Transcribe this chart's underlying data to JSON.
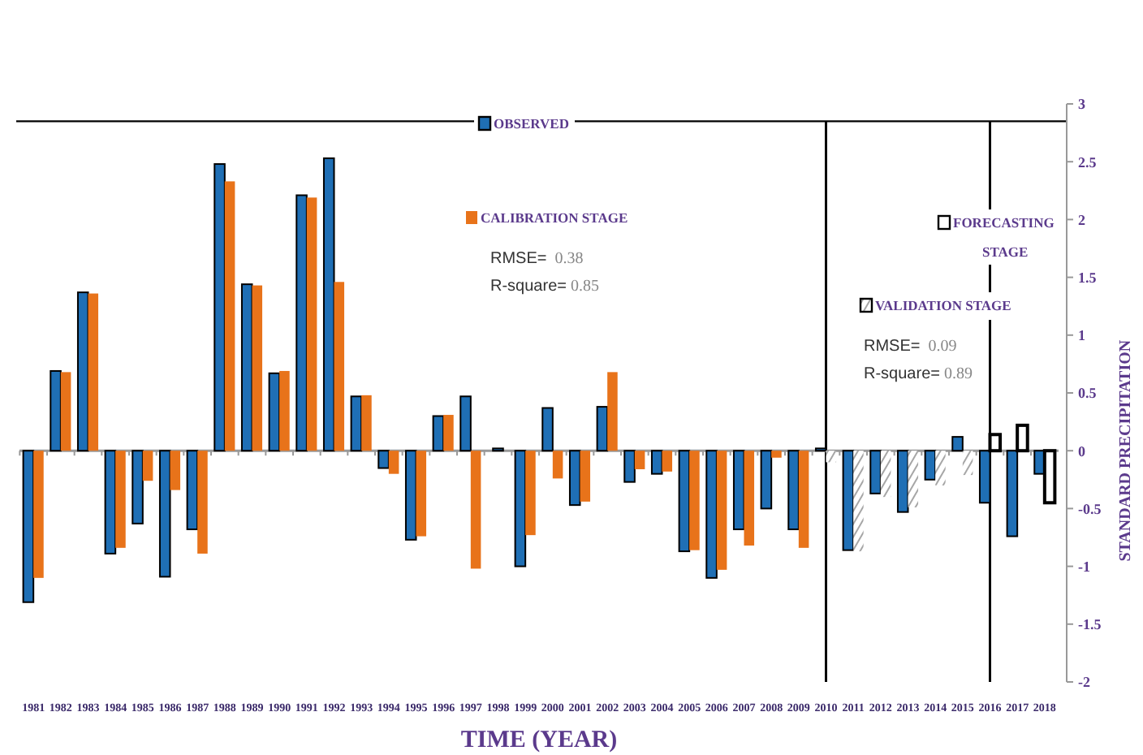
{
  "chart_data": {
    "type": "bar",
    "xlabel": "TIME (YEAR)",
    "ylabel": "STANDARD PRECIPITATION",
    "categories": [
      "1981",
      "1982",
      "1983",
      "1984",
      "1985",
      "1986",
      "1987",
      "1988",
      "1989",
      "1990",
      "1991",
      "1992",
      "1993",
      "1994",
      "1995",
      "1996",
      "1997",
      "1998",
      "1999",
      "2000",
      "2001",
      "2002",
      "2003",
      "2004",
      "2005",
      "2006",
      "2007",
      "2008",
      "2009",
      "2010",
      "2011",
      "2012",
      "2013",
      "2014",
      "2015",
      "2016",
      "2017",
      "2018"
    ],
    "series": [
      {
        "name": "OBSERVED",
        "color": "#1f6fb5",
        "values": [
          -1.31,
          0.69,
          1.37,
          -0.89,
          -0.63,
          -1.09,
          -0.68,
          2.48,
          1.44,
          0.67,
          2.21,
          2.53,
          0.47,
          -0.15,
          -0.77,
          0.3,
          0.47,
          0.02,
          -1.0,
          0.37,
          -0.47,
          0.38,
          -0.27,
          -0.2,
          -0.87,
          -1.1,
          -0.68,
          -0.5,
          -0.68,
          0.02,
          -0.86,
          -0.37,
          -0.53,
          -0.25,
          0.12,
          -0.45,
          -0.74,
          -0.2
        ]
      },
      {
        "name": "CALIBRATION STAGE",
        "color": "#e8731a",
        "values": [
          -1.1,
          0.68,
          1.36,
          -0.84,
          -0.26,
          -0.34,
          -0.89,
          2.33,
          1.43,
          0.69,
          2.19,
          1.46,
          0.48,
          -0.2,
          -0.74,
          0.31,
          -1.02,
          null,
          -0.73,
          -0.24,
          -0.44,
          0.68,
          -0.16,
          -0.18,
          -0.86,
          -1.03,
          -0.82,
          -0.06,
          -0.84,
          null,
          null,
          null,
          null,
          null,
          null,
          null,
          null,
          null
        ]
      },
      {
        "name": "VALIDATION STAGE",
        "color": "#a6a6a6",
        "values": [
          null,
          null,
          null,
          null,
          null,
          null,
          null,
          null,
          null,
          null,
          null,
          null,
          null,
          null,
          null,
          null,
          null,
          null,
          null,
          null,
          null,
          null,
          null,
          null,
          null,
          null,
          null,
          null,
          null,
          -0.1,
          -0.87,
          -0.4,
          -0.49,
          -0.3,
          -0.21,
          null,
          null,
          null
        ]
      },
      {
        "name": "FORECASTING STAGE",
        "color": "#ffffff",
        "values": [
          null,
          null,
          null,
          null,
          null,
          null,
          null,
          null,
          null,
          null,
          null,
          null,
          null,
          null,
          null,
          null,
          null,
          null,
          null,
          null,
          null,
          null,
          null,
          null,
          null,
          null,
          null,
          null,
          null,
          null,
          null,
          null,
          null,
          null,
          null,
          0.14,
          0.22,
          -0.45
        ]
      }
    ],
    "ylim": [
      -2,
      3
    ],
    "yticks": [
      -2,
      -1.5,
      -1,
      -0.5,
      0,
      0.5,
      1,
      1.5,
      2,
      2.5,
      3
    ],
    "ref_lines": [
      {
        "axis": "y",
        "value": 2.85
      },
      {
        "axis": "x",
        "value": "2010"
      },
      {
        "axis": "x",
        "value": "2016"
      }
    ],
    "annotations": [
      "RMSE=  0.38",
      "R-square= 0.85",
      "RMSE=  0.09",
      "R-square= 0.89"
    ],
    "legend": "top",
    "grid": false
  }
}
